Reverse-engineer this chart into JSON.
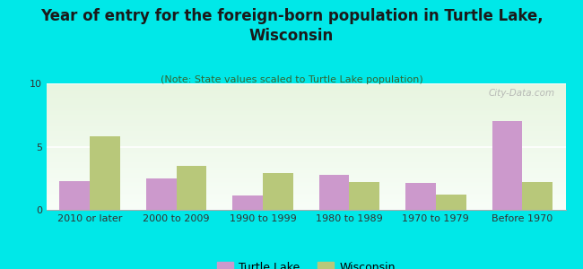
{
  "title": "Year of entry for the foreign-born population in Turtle Lake,\nWisconsin",
  "subtitle": "(Note: State values scaled to Turtle Lake population)",
  "categories": [
    "2010 or later",
    "2000 to 2009",
    "1990 to 1999",
    "1980 to 1989",
    "1970 to 1979",
    "Before 1970"
  ],
  "turtle_lake": [
    2.3,
    2.5,
    1.1,
    2.8,
    2.1,
    7.0
  ],
  "wisconsin": [
    5.8,
    3.5,
    2.9,
    2.2,
    1.2,
    2.2
  ],
  "turtle_lake_color": "#cc99cc",
  "wisconsin_color": "#b8c87a",
  "background_color": "#00e8e8",
  "grad_top": "#e8f5e0",
  "grad_bottom": "#f5fbf0",
  "ylim": [
    0,
    10
  ],
  "yticks": [
    0,
    5,
    10
  ],
  "watermark": "City-Data.com",
  "bar_width": 0.35,
  "title_fontsize": 12,
  "subtitle_fontsize": 8,
  "legend_fontsize": 9,
  "tick_fontsize": 8
}
